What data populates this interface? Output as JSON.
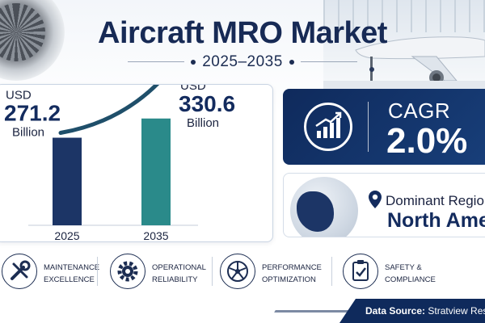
{
  "header": {
    "title": "Aircraft MRO Market",
    "years": "2025–2035"
  },
  "chart_data": {
    "type": "bar",
    "categories": [
      "2025",
      "2035"
    ],
    "values": [
      271.2,
      330.6
    ],
    "units": "Billion",
    "currency": "USD",
    "colors": [
      "#1c3566",
      "#2a8a8a"
    ],
    "xlabel": "",
    "ylabel": "",
    "ylim": [
      0,
      400
    ],
    "grid": false,
    "legend": "none",
    "value_labels": [
      {
        "prefix": "USD",
        "value": "271.2",
        "unit": "Billion"
      },
      {
        "prefix": "USD",
        "value": "330.6",
        "unit": "Billion"
      }
    ]
  },
  "cagr": {
    "label": "CAGR",
    "value": "2.0%",
    "icon": "growth-chart-icon"
  },
  "region": {
    "label": "Dominant Region:",
    "value": "North America",
    "icons": [
      "globe-icon",
      "location-pin-icon"
    ]
  },
  "features": [
    {
      "line1": "MAINTENANCE",
      "line2": "EXCELLENCE",
      "icon": "tools-icon"
    },
    {
      "line1": "OPERATIONAL",
      "line2": "RELIABILITY",
      "icon": "gear-icon"
    },
    {
      "line1": "PERFORMANCE",
      "line2": "OPTIMIZATION",
      "icon": "turbine-icon"
    },
    {
      "line1": "SAFETY &",
      "line2": "COMPLIANCE",
      "icon": "checklist-icon"
    }
  ],
  "footer": {
    "label": "Data Source:",
    "source": "Stratview Research"
  }
}
